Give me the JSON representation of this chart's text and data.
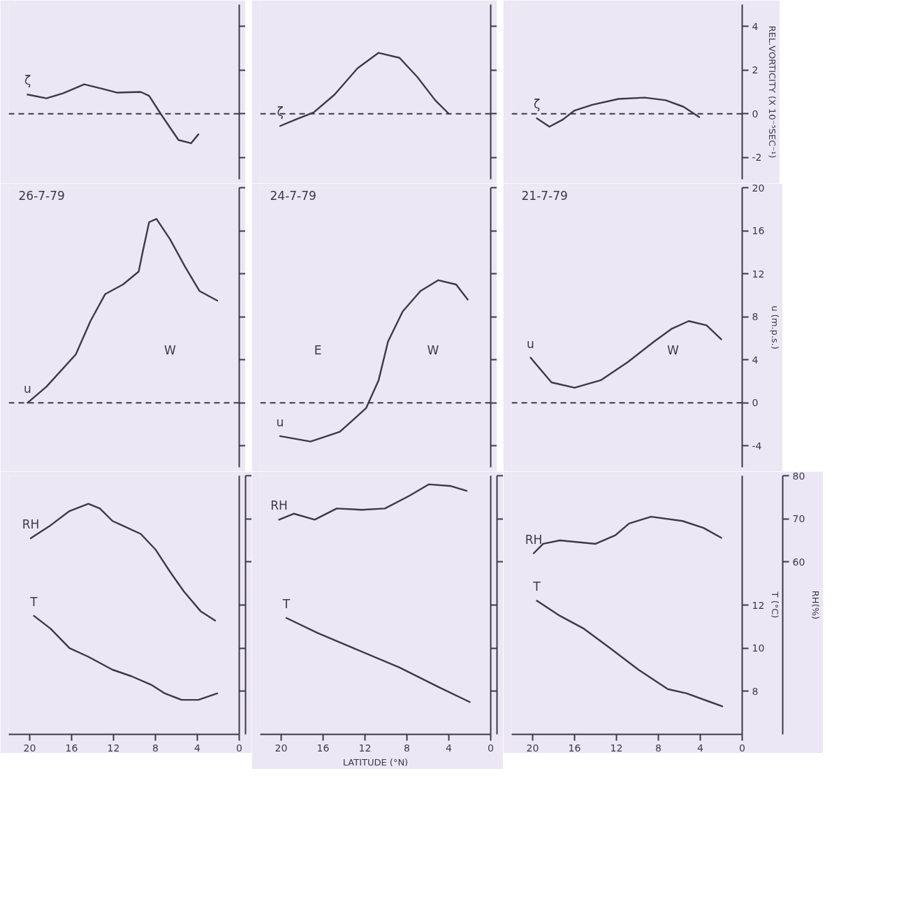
{
  "chart_data": [
    {
      "type": "line",
      "xlim": [
        22,
        0
      ],
      "xticks": [
        0,
        4,
        8,
        12,
        16,
        20
      ],
      "ylim": [
        -3,
        5
      ],
      "yticks": [
        -2,
        0,
        2,
        4
      ],
      "tick_labels": false,
      "ref_lines": [
        {
          "axis": "y",
          "value": 0,
          "line_style": "dashed"
        }
      ],
      "series": [
        {
          "name": "ζ",
          "color": "#3a3a48",
          "x": [
            20.2,
            18.4,
            16.8,
            14.8,
            13.1,
            11.7,
            9.4,
            8.6,
            7.5,
            5.8,
            4.6,
            3.9
          ],
          "values": [
            0.88,
            0.71,
            0.94,
            1.35,
            1.15,
            0.97,
            1.0,
            0.82,
            0,
            -1.2,
            -1.35,
            -0.94
          ]
        }
      ]
    },
    {
      "type": "line",
      "xlim": [
        22,
        0
      ],
      "xticks": [
        0,
        4,
        8,
        12,
        16,
        20
      ],
      "ylim": [
        -3,
        5
      ],
      "yticks": [
        -2,
        0,
        2,
        4
      ],
      "tick_labels": false,
      "ref_lines": [
        {
          "axis": "y",
          "value": 0,
          "line_style": "dashed"
        }
      ],
      "series": [
        {
          "name": "ζ",
          "color": "#3a3a48",
          "x": [
            20.1,
            18.6,
            16.9,
            14.9,
            12.7,
            10.7,
            8.7,
            7.0,
            5.3,
            4.0
          ],
          "values": [
            -0.56,
            -0.26,
            0.06,
            0.88,
            2.09,
            2.79,
            2.56,
            1.68,
            0.62,
            0
          ]
        }
      ]
    },
    {
      "type": "line",
      "xlim": [
        22,
        0
      ],
      "xticks": [
        0,
        4,
        8,
        12,
        16,
        20
      ],
      "ylim": [
        -3,
        5
      ],
      "yticks": [
        -2,
        0,
        2,
        4
      ],
      "tick_labels": "y",
      "ylabel": "REL.VORTICITY (X 10⁻⁵SEC⁻¹)",
      "ref_lines": [
        {
          "axis": "y",
          "value": 0,
          "line_style": "dashed"
        }
      ],
      "series": [
        {
          "name": "ζ",
          "color": "#3a3a48",
          "x": [
            19.6,
            18.4,
            17.1,
            16.0,
            14.3,
            11.8,
            9.3,
            7.3,
            5.6,
            4.1
          ],
          "values": [
            -0.21,
            -0.59,
            -0.26,
            0.15,
            0.41,
            0.68,
            0.74,
            0.62,
            0.32,
            -0.15
          ]
        }
      ]
    },
    {
      "type": "line",
      "title": "26-7-79",
      "xlim": [
        22,
        0
      ],
      "xticks": [
        0,
        4,
        8,
        12,
        16,
        20
      ],
      "ylim": [
        -6,
        20
      ],
      "yticks": [
        -4,
        0,
        4,
        8,
        12,
        16,
        20
      ],
      "tick_labels": false,
      "ref_lines": [
        {
          "axis": "y",
          "value": 0,
          "line_style": "dashed"
        }
      ],
      "annotations": [
        "W"
      ],
      "series": [
        {
          "name": "u",
          "color": "#3a3a48",
          "x": [
            20.2,
            18.4,
            15.6,
            14.2,
            12.8,
            11.1,
            9.6,
            9.2,
            8.6,
            7.9,
            6.6,
            5.2,
            3.8,
            2.1
          ],
          "values": [
            0,
            1.5,
            4.5,
            7.6,
            10.1,
            11.0,
            12.2,
            14.1,
            16.8,
            17.1,
            15.2,
            12.7,
            10.4,
            9.5
          ]
        }
      ]
    },
    {
      "type": "line",
      "title": "24-7-79",
      "xlim": [
        22,
        0
      ],
      "xticks": [
        0,
        4,
        8,
        12,
        16,
        20
      ],
      "ylim": [
        -6,
        20
      ],
      "yticks": [
        -4,
        0,
        4,
        8,
        12,
        16,
        20
      ],
      "tick_labels": false,
      "ref_lines": [
        {
          "axis": "y",
          "value": 0,
          "line_style": "dashed"
        }
      ],
      "annotations": [
        "E",
        "W"
      ],
      "series": [
        {
          "name": "u",
          "color": "#3a3a48",
          "x": [
            20.1,
            17.2,
            14.4,
            11.9,
            10.7,
            9.8,
            8.4,
            6.7,
            5.0,
            3.3,
            2.2
          ],
          "values": [
            -3.1,
            -3.6,
            -2.7,
            -0.5,
            2.1,
            5.7,
            8.5,
            10.4,
            11.4,
            11.0,
            9.6
          ]
        }
      ]
    },
    {
      "type": "line",
      "title": "21-7-79",
      "xlim": [
        22,
        0
      ],
      "xticks": [
        0,
        4,
        8,
        12,
        16,
        20
      ],
      "ylim": [
        -6,
        20
      ],
      "yticks": [
        -4,
        0,
        4,
        8,
        12,
        16,
        20
      ],
      "tick_labels": "y",
      "ylabel": "u (m.p.s.)",
      "ref_lines": [
        {
          "axis": "y",
          "value": 0,
          "line_style": "dashed"
        }
      ],
      "annotations": [
        "W"
      ],
      "series": [
        {
          "name": "u",
          "color": "#3a3a48",
          "x": [
            20.2,
            18.2,
            16.0,
            13.5,
            10.9,
            8.4,
            6.7,
            5.1,
            3.4,
            2.0
          ],
          "values": [
            4.2,
            1.9,
            1.4,
            2.1,
            3.8,
            5.7,
            6.9,
            7.6,
            7.2,
            5.9
          ]
        }
      ]
    },
    {
      "type": "line",
      "xlim": [
        22,
        0
      ],
      "xticks": [
        0,
        4,
        8,
        12,
        16,
        20
      ],
      "ylim": [
        6,
        18
      ],
      "yticks": [
        8,
        10,
        12
      ],
      "y2lim": [
        20,
        80
      ],
      "y2ticks": [
        60,
        70,
        80
      ],
      "tick_labels": "x",
      "series": [
        {
          "name": "T",
          "color": "#3a3a48",
          "x": [
            19.6,
            18.0,
            16.2,
            14.4,
            12.1,
            10.3,
            8.4,
            7.1,
            5.5,
            3.9,
            2.1
          ],
          "values": [
            11.5,
            10.9,
            10.0,
            9.6,
            9.0,
            8.7,
            8.3,
            7.9,
            7.6,
            7.6,
            7.9
          ]
        },
        {
          "name": "RH",
          "axis": "y2",
          "color": "#3a3a48",
          "x": [
            19.9,
            18.0,
            16.2,
            14.4,
            13.3,
            12.1,
            11.2,
            9.4,
            8.0,
            6.6,
            5.3,
            3.7,
            2.3
          ],
          "values": [
            65.5,
            68.5,
            71.8,
            73.5,
            72.4,
            69.5,
            68.5,
            66.5,
            62.9,
            57.7,
            53.2,
            48.6,
            46.4
          ]
        }
      ]
    },
    {
      "type": "line",
      "xlim": [
        22,
        0
      ],
      "xticks": [
        0,
        4,
        8,
        12,
        16,
        20
      ],
      "ylim": [
        6,
        18
      ],
      "yticks": [
        8,
        10,
        12
      ],
      "y2lim": [
        20,
        80
      ],
      "y2ticks": [
        60,
        70,
        80
      ],
      "tick_labels": "x",
      "xlabel": "LATITUDE (°N)",
      "series": [
        {
          "name": "T",
          "color": "#3a3a48",
          "x": [
            19.5,
            16.5,
            13.1,
            8.7,
            5.0,
            2.0
          ],
          "values": [
            11.4,
            10.7,
            10.0,
            9.1,
            8.2,
            7.5
          ]
        },
        {
          "name": "RH",
          "axis": "y2",
          "color": "#3a3a48",
          "x": [
            20.2,
            18.8,
            16.8,
            14.7,
            12.3,
            10.1,
            7.8,
            5.9,
            3.8,
            2.3
          ],
          "values": [
            69.8,
            71.2,
            69.8,
            72.4,
            72.1,
            72.4,
            75.3,
            78.0,
            77.6,
            76.5
          ]
        }
      ]
    },
    {
      "type": "line",
      "xlim": [
        22,
        0
      ],
      "xticks": [
        0,
        4,
        8,
        12,
        16,
        20
      ],
      "ylim": [
        6,
        18
      ],
      "yticks": [
        8,
        10,
        12
      ],
      "y2lim": [
        20,
        80
      ],
      "y2ticks": [
        60,
        70,
        80
      ],
      "ylabel": "T (°C)",
      "y2label": "RH(%)",
      "series": [
        {
          "name": "T",
          "color": "#3a3a48",
          "x": [
            19.6,
            17.4,
            15.1,
            12.6,
            9.9,
            7.1,
            5.3,
            1.9
          ],
          "values": [
            12.2,
            11.5,
            10.9,
            10.0,
            9.0,
            8.1,
            7.9,
            7.3
          ]
        },
        {
          "name": "RH",
          "axis": "y2",
          "color": "#3a3a48",
          "x": [
            19.9,
            19.0,
            17.4,
            14.0,
            12.1,
            10.8,
            8.7,
            5.7,
            3.7,
            2.0
          ],
          "values": [
            62.0,
            64.2,
            65.0,
            64.2,
            66.2,
            68.9,
            70.5,
            69.5,
            67.9,
            65.6
          ]
        }
      ]
    }
  ]
}
